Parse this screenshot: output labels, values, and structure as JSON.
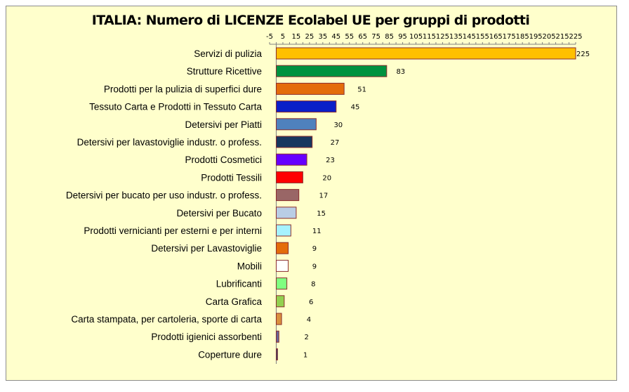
{
  "chart_data": {
    "type": "bar",
    "orientation": "horizontal",
    "title": "ITALIA: Numero di LICENZE  Ecolabel UE per gruppi di prodotti",
    "xlabel": "",
    "ylabel": "",
    "xlim": [
      -5,
      225
    ],
    "x_ticks": [
      "-5",
      "5",
      "15",
      "25",
      "35",
      "45",
      "55",
      "65",
      "75",
      "85",
      "95",
      "105",
      "115",
      "125",
      "135",
      "145",
      "155",
      "165",
      "175",
      "185",
      "195",
      "205",
      "215",
      "225"
    ],
    "axis_position": "top",
    "grid": false,
    "categories": [
      "Servizi di pulizia",
      "Strutture Ricettive",
      "Prodotti per la pulizia di superfici dure",
      "Tessuto Carta e Prodotti in Tessuto Carta",
      "Detersivi per Piatti",
      "Detersivi per lavastoviglie industr. o profess.",
      "Prodotti Cosmetici",
      "Prodotti Tessili ",
      "Detersivi per bucato per uso industr. o profess.",
      "Detersivi per Bucato",
      "Prodotti vernicianti per esterni e per interni",
      "Detersivi per Lavastoviglie",
      "Mobili",
      "Lubrificanti",
      "Carta Grafica ",
      "Carta stampata, per cartoleria, sporte di carta",
      "Prodotti igienici assorbenti",
      "Coperture dure"
    ],
    "values": [
      225,
      83,
      51,
      45,
      30,
      27,
      23,
      20,
      17,
      15,
      11,
      9,
      9,
      8,
      6,
      4,
      2,
      1
    ],
    "colors": [
      "#FFC000",
      "#00923F",
      "#E46C0A",
      "#0A1FC8",
      "#4F81BD",
      "#17375E",
      "#6600FF",
      "#FF0000",
      "#996666",
      "#B9CDE5",
      "#A5F2FF",
      "#E46C0A",
      "#FFFFFF",
      "#80FF80",
      "#92D050",
      "#D9903E",
      "#666699",
      "#1F497D"
    ],
    "bar_border_color": "#8B2D2D",
    "background_color": "#FFFFCC"
  }
}
